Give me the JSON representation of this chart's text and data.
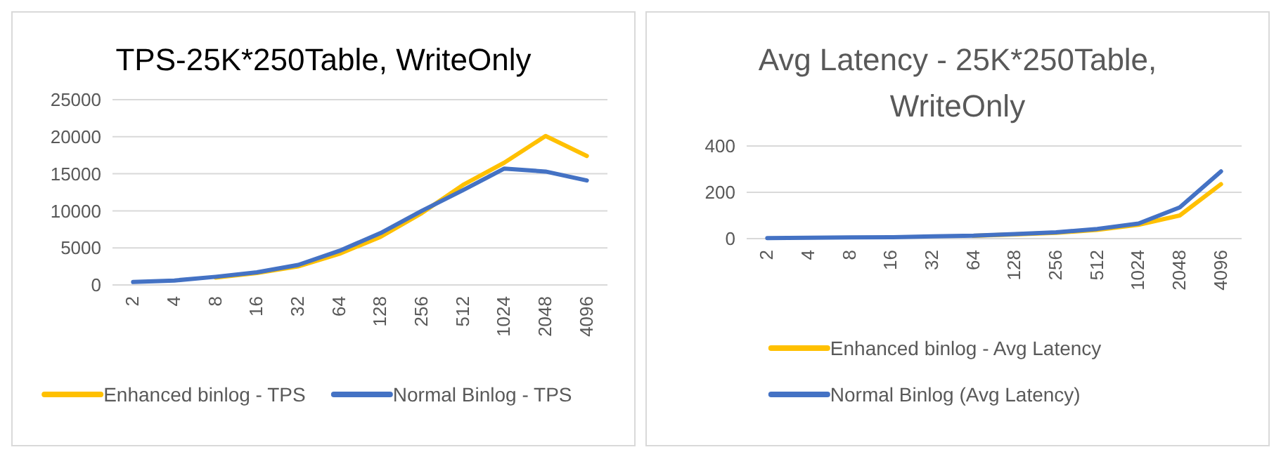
{
  "chart_data": [
    {
      "type": "line",
      "title": "TPS-25K*250Table, WriteOnly",
      "categories": [
        "2",
        "4",
        "8",
        "16",
        "32",
        "64",
        "128",
        "256",
        "512",
        "1024",
        "2048",
        "4096"
      ],
      "series": [
        {
          "name": "Enhanced binlog - TPS",
          "color": "#ffc000",
          "values": [
            null,
            null,
            1000,
            1600,
            2500,
            4200,
            6500,
            9700,
            13500,
            16500,
            20100,
            17400
          ]
        },
        {
          "name": "Normal Binlog - TPS",
          "color": "#4472c4",
          "values": [
            400,
            600,
            1100,
            1700,
            2700,
            4600,
            7000,
            10000,
            12800,
            15700,
            15300,
            14100
          ]
        }
      ],
      "ylim": [
        0,
        25000
      ],
      "yticks": [
        0,
        5000,
        10000,
        15000,
        20000,
        25000
      ],
      "grid": "y",
      "legend": "bottom"
    },
    {
      "type": "line",
      "title": "Avg Latency - 25K*250Table, WriteOnly",
      "categories": [
        "2",
        "4",
        "8",
        "16",
        "32",
        "64",
        "128",
        "256",
        "512",
        "1024",
        "2048",
        "4096"
      ],
      "series": [
        {
          "name": "Enhanced binlog - Avg Latency",
          "color": "#ffc000",
          "values": [
            null,
            null,
            null,
            null,
            null,
            12,
            18,
            25,
            38,
            60,
            100,
            235
          ]
        },
        {
          "name": "Normal Binlog (Avg Latency)",
          "color": "#4472c4",
          "values": [
            2,
            4,
            5,
            6,
            10,
            13,
            20,
            27,
            42,
            65,
            135,
            290
          ]
        }
      ],
      "ylim": [
        0,
        400
      ],
      "yticks": [
        0,
        200,
        400
      ],
      "grid": "y",
      "legend": "bottom"
    }
  ]
}
